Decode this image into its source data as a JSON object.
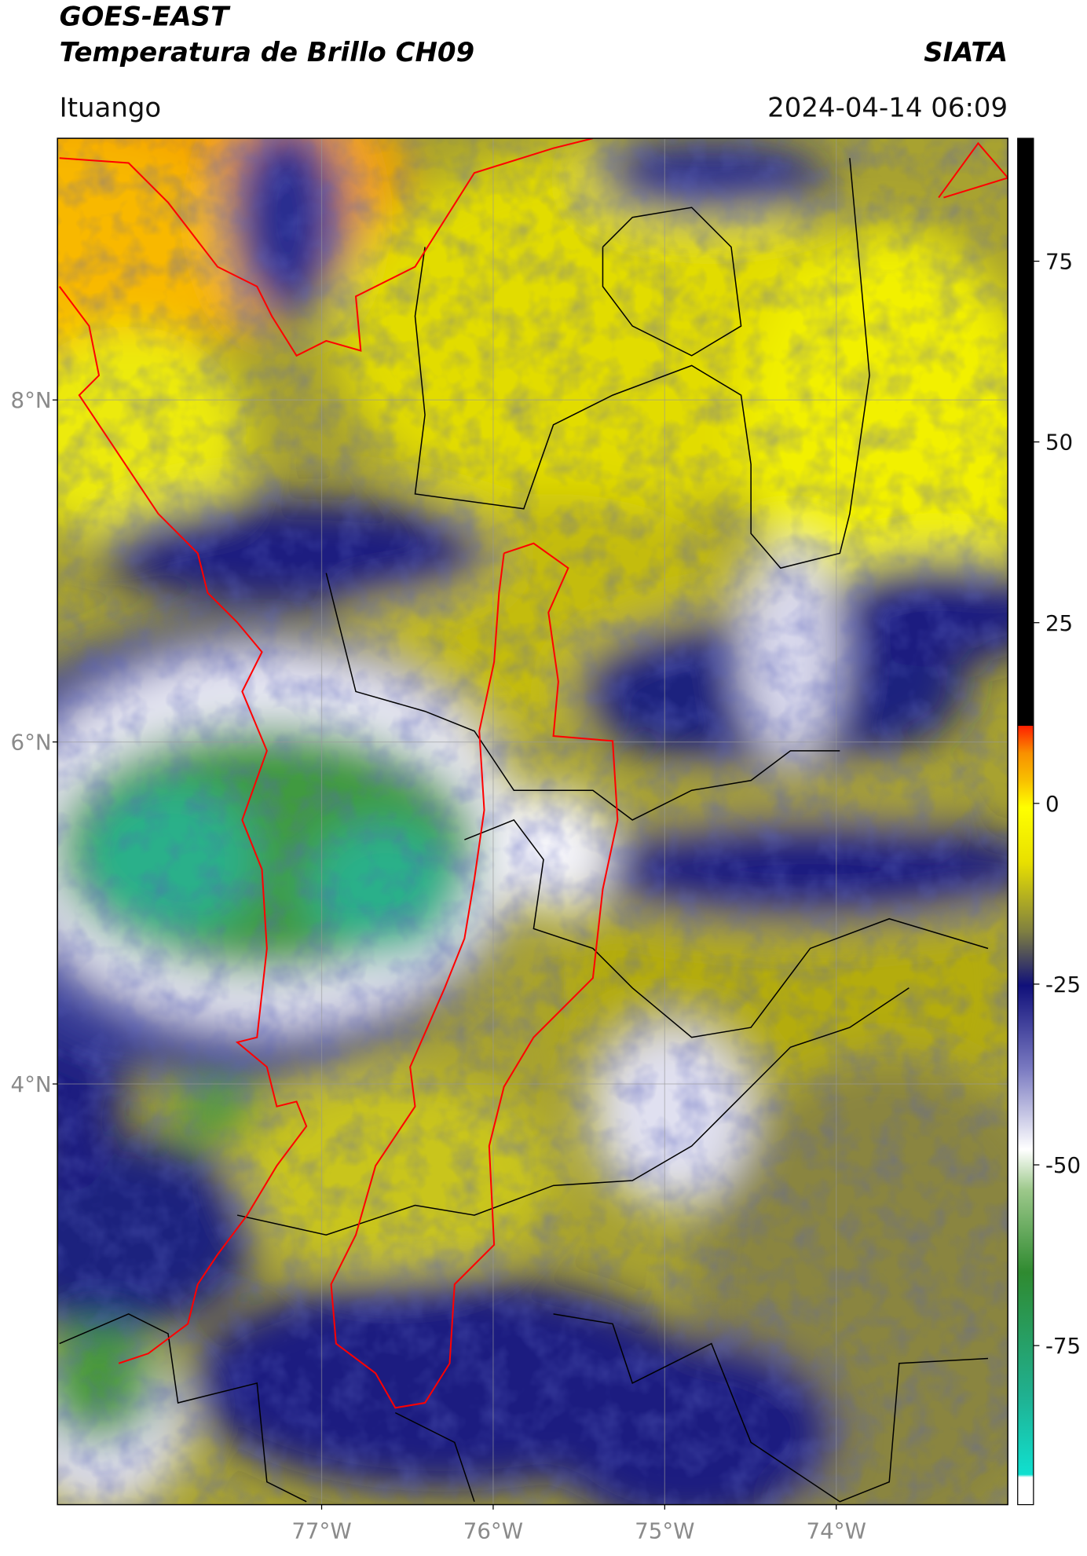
{
  "header": {
    "title": "GOES-EAST",
    "subtitle": "Temperatura de Brillo CH09",
    "brand": "SIATA",
    "location": "Ituango",
    "datetime": "2024-04-14 06:09"
  },
  "map": {
    "latlim": [
      1.54,
      9.53
    ],
    "lonlim": [
      -78.54,
      -73.0
    ],
    "grid": true,
    "latticks": [
      {
        "value": 8,
        "label": "8°N"
      },
      {
        "value": 6,
        "label": "6°N"
      },
      {
        "value": 4,
        "label": "4°N"
      }
    ],
    "lonticks": [
      {
        "value": -77,
        "label": "77°W"
      },
      {
        "value": -76,
        "label": "76°W"
      },
      {
        "value": -75,
        "label": "75°W"
      },
      {
        "value": -74,
        "label": "74°W"
      }
    ]
  },
  "colorbar": {
    "lim": [
      -97,
      92
    ],
    "ticks": [
      -75,
      -50,
      -25,
      0,
      25,
      50,
      75
    ]
  }
}
